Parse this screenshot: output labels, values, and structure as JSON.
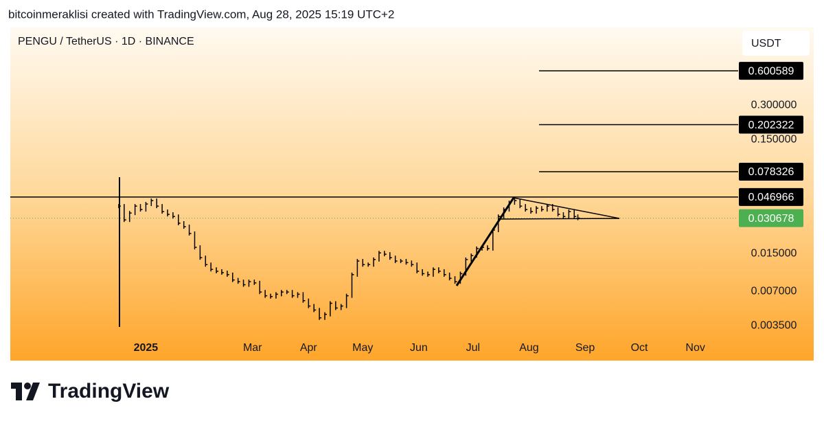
{
  "header": "bitcoinmeraklisi created with TradingView.com, Aug 28, 2025 15:19 UTC+2",
  "logo": "TradingView",
  "chart_data": {
    "type": "bar-trace",
    "title": "PENGU / TetherUS · 1D · BINANCE",
    "currency": "USDT",
    "log_scale": true,
    "color": "#000000",
    "x": [
      -15,
      -12,
      -9,
      -6,
      -3,
      0,
      3,
      6,
      9,
      12,
      15,
      18,
      21,
      24,
      27,
      30,
      33,
      36,
      39,
      42,
      45,
      48,
      51,
      54,
      57,
      60,
      63,
      66,
      69,
      72,
      75,
      78,
      81,
      84,
      87,
      90,
      93,
      96,
      99,
      102,
      105,
      108,
      111,
      114,
      117,
      120,
      123,
      126,
      129,
      132,
      135,
      138,
      141,
      144,
      147,
      150,
      153,
      156,
      159,
      162,
      165,
      168,
      171,
      174,
      177,
      180,
      183,
      186,
      189,
      192,
      195,
      198,
      201,
      204,
      207,
      210,
      213,
      216,
      219,
      222,
      225,
      228,
      231,
      234,
      237,
      239
    ],
    "values": [
      0.0391,
      0.0296,
      0.034,
      0.0391,
      0.0365,
      0.0408,
      0.0437,
      0.0391,
      0.035,
      0.0331,
      0.0317,
      0.0277,
      0.0258,
      0.0225,
      0.017,
      0.0138,
      0.012,
      0.0109,
      0.0105,
      0.0102,
      0.0098,
      0.0088,
      0.0085,
      0.008,
      0.0085,
      0.0083,
      0.0069,
      0.0064,
      0.0063,
      0.0066,
      0.0069,
      0.0069,
      0.0064,
      0.0066,
      0.0058,
      0.0052,
      0.0048,
      0.0041,
      0.0044,
      0.0055,
      0.005,
      0.0052,
      0.0064,
      0.0098,
      0.0129,
      0.012,
      0.012,
      0.0133,
      0.0152,
      0.0148,
      0.0138,
      0.0129,
      0.0129,
      0.0125,
      0.012,
      0.0105,
      0.01,
      0.0098,
      0.0109,
      0.0105,
      0.0098,
      0.0091,
      0.0085,
      0.01,
      0.0133,
      0.0144,
      0.0166,
      0.017,
      0.0166,
      0.0241,
      0.0317,
      0.0365,
      0.0419,
      0.0437,
      0.0391,
      0.0365,
      0.035,
      0.0375,
      0.0365,
      0.0391,
      0.0365,
      0.0331,
      0.0317,
      0.035,
      0.0317,
      0.0307
    ],
    "xlim": [
      -75,
      322
    ],
    "xticks": [
      {
        "value": 0,
        "label": "2025"
      },
      {
        "value": 59,
        "label": "Mar"
      },
      {
        "value": 90,
        "label": "Apr"
      },
      {
        "value": 120,
        "label": "May"
      },
      {
        "value": 151,
        "label": "Jun"
      },
      {
        "value": 181,
        "label": "Jul"
      },
      {
        "value": 212,
        "label": "Aug"
      },
      {
        "value": 243,
        "label": "Sep"
      },
      {
        "value": 273,
        "label": "Oct"
      },
      {
        "value": 304,
        "label": "Nov"
      }
    ],
    "ylim": [
      0.00173,
      1.44
    ],
    "yticks": [
      {
        "value": 0.3,
        "label": "0.300000"
      },
      {
        "value": 0.15,
        "label": "0.150000"
      },
      {
        "value": 0.015,
        "label": "0.015000"
      },
      {
        "value": 0.007,
        "label": "0.007000"
      },
      {
        "value": 0.0035,
        "label": "0.003500"
      }
    ],
    "levels": [
      0.600589,
      0.202322,
      0.078326,
      0.046966
    ],
    "last_price": 0.030678,
    "last_price_color": "#4caf50"
  }
}
